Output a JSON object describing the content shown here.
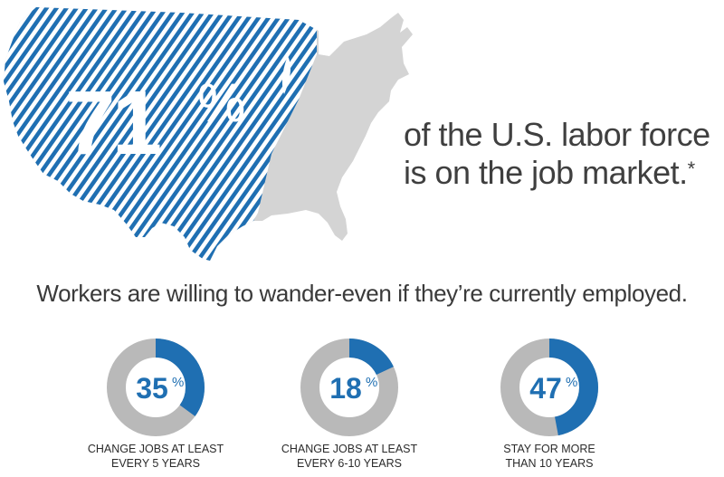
{
  "hero": {
    "percent_value": "71",
    "percent_sign": "%",
    "headline_line1": "of the U.S. labor force",
    "headline_line2": "is on the job market.",
    "footnote_mark": "*"
  },
  "subhead": "Workers are willing to wander-even if they’re currently employed.",
  "colors": {
    "accent": "#1f6fb2",
    "ring_gray": "#b9b9b9",
    "map_gray": "#d4d4d4"
  },
  "chart_data": [
    {
      "type": "pie",
      "variant": "donut",
      "value": 35,
      "label": "35",
      "unit": "%",
      "caption_line1": "CHANGE JOBS AT LEAST",
      "caption_line2": "EVERY 5 YEARS"
    },
    {
      "type": "pie",
      "variant": "donut",
      "value": 18,
      "label": "18",
      "unit": "%",
      "caption_line1": "CHANGE JOBS AT LEAST",
      "caption_line2": "EVERY 6-10 YEARS"
    },
    {
      "type": "pie",
      "variant": "donut",
      "value": 47,
      "label": "47",
      "unit": "%",
      "caption_line1": "STAY FOR MORE",
      "caption_line2": "THAN 10 YEARS"
    }
  ]
}
